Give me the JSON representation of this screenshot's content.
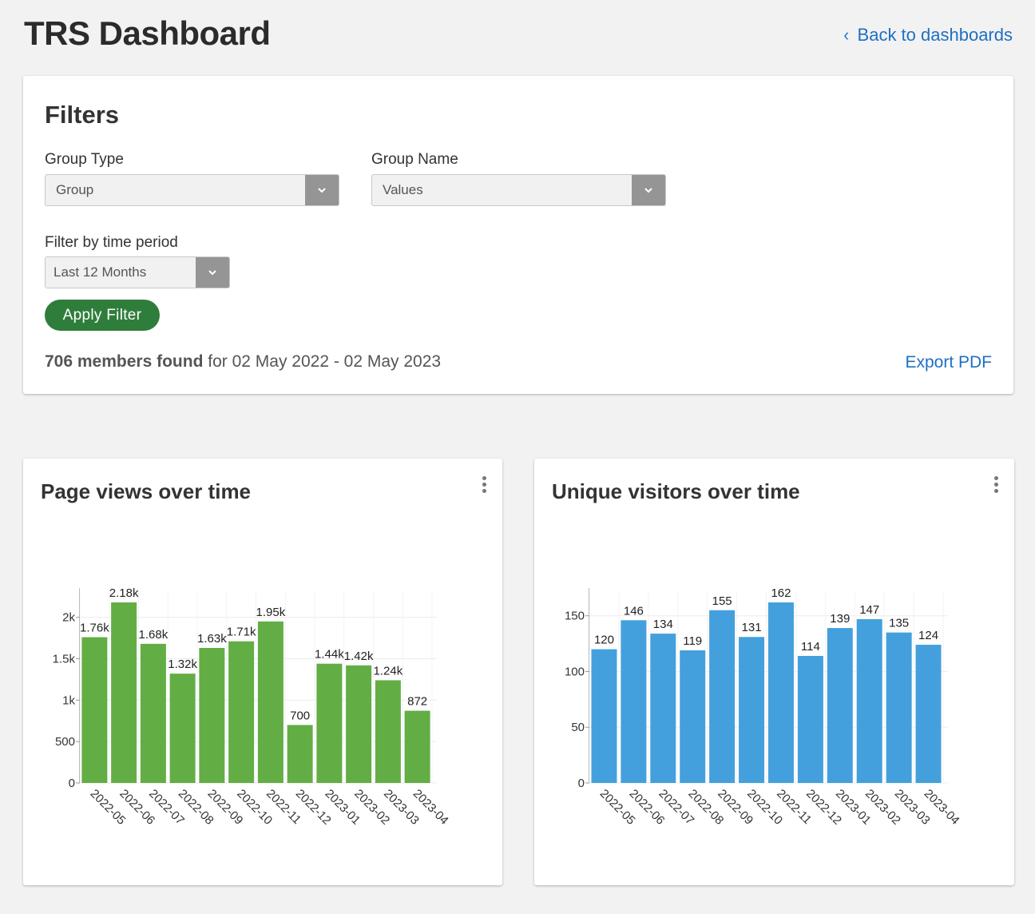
{
  "header": {
    "title": "TRS Dashboard",
    "back_link": "Back to dashboards"
  },
  "filters": {
    "title": "Filters",
    "group_type": {
      "label": "Group Type",
      "value": "Group"
    },
    "group_name": {
      "label": "Group Name",
      "value": "Values"
    },
    "time_period": {
      "label": "Filter by time period",
      "value": "Last 12 Months"
    },
    "apply_label": "Apply Filter",
    "summary_bold": "706 members found",
    "summary_rest": "for 02 May 2022 - 02 May 2023",
    "export_label": "Export PDF"
  },
  "colors": {
    "page_views_bar": "#63ad45",
    "unique_visitors_bar": "#44a0dc",
    "link": "#1f6fc4",
    "apply_button": "#2f7d3b"
  },
  "chart_data": [
    {
      "title": "Page views over time",
      "type": "bar",
      "categories": [
        "2022-05",
        "2022-06",
        "2022-07",
        "2022-08",
        "2022-09",
        "2022-10",
        "2022-11",
        "2022-12",
        "2023-01",
        "2023-02",
        "2023-03",
        "2023-04"
      ],
      "values": [
        1760,
        2180,
        1680,
        1320,
        1630,
        1710,
        1950,
        700,
        1440,
        1420,
        1240,
        872
      ],
      "value_labels": [
        "1.76k",
        "2.18k",
        "1.68k",
        "1.32k",
        "1.63k",
        "1.71k",
        "1.95k",
        "700",
        "1.44k",
        "1.42k",
        "1.24k",
        "872"
      ],
      "y_ticks": [
        0,
        500,
        1000,
        1500,
        2000
      ],
      "y_tick_labels": [
        "0",
        "500",
        "1k",
        "1.5k",
        "2k"
      ],
      "ylim": [
        0,
        2180
      ],
      "grid": true
    },
    {
      "title": "Unique visitors over time",
      "type": "bar",
      "categories": [
        "2022-05",
        "2022-06",
        "2022-07",
        "2022-08",
        "2022-09",
        "2022-10",
        "2022-11",
        "2022-12",
        "2023-01",
        "2023-02",
        "2023-03",
        "2023-04"
      ],
      "values": [
        120,
        146,
        134,
        119,
        155,
        131,
        162,
        114,
        139,
        147,
        135,
        124
      ],
      "value_labels": [
        "120",
        "146",
        "134",
        "119",
        "155",
        "131",
        "162",
        "114",
        "139",
        "147",
        "135",
        "124"
      ],
      "y_ticks": [
        0,
        50,
        100,
        150
      ],
      "y_tick_labels": [
        "0",
        "50",
        "100",
        "150"
      ],
      "ylim": [
        0,
        162
      ],
      "grid": true
    }
  ]
}
